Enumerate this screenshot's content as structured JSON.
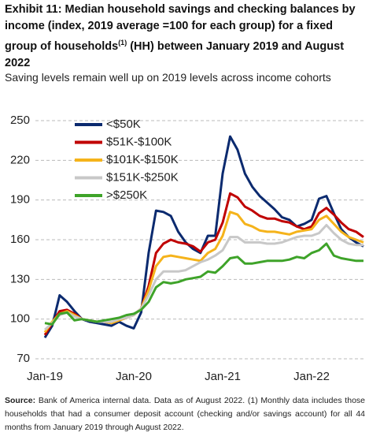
{
  "chart_data": {
    "type": "line",
    "title": {
      "before": "Exhibit 11: Median household savings and checking balances by income (index, 2019 average =100 for each group) for a fixed group of households",
      "note": "(1)",
      "after": " (HH) between January 2019 and August 2022"
    },
    "subtitle": "Saving levels remain well up on 2019 levels across income cohorts",
    "source": {
      "label": "Source:",
      "text": "Bank of America internal data. Data as of August 2022. (1) Monthly data includes those households that had a consumer deposit account (checking and/or savings account) for all 44 months from January 2019 through August 2022."
    },
    "categories": [
      "Jan-19",
      null,
      null,
      null,
      null,
      null,
      null,
      null,
      null,
      null,
      null,
      null,
      "Jan-20",
      null,
      null,
      null,
      null,
      null,
      null,
      null,
      null,
      null,
      null,
      null,
      "Jan-21",
      null,
      null,
      null,
      null,
      null,
      null,
      null,
      null,
      null,
      null,
      null,
      "Jan-22",
      null,
      null,
      null,
      null,
      null,
      null,
      null
    ],
    "series": [
      {
        "name": "<$50K",
        "color": "#0b2a6f",
        "values": [
          86,
          95,
          118,
          113,
          106,
          100,
          98,
          97,
          96,
          95,
          98,
          95,
          93,
          105,
          150,
          182,
          181,
          178,
          166,
          158,
          153,
          150,
          163,
          163,
          210,
          238,
          228,
          210,
          200,
          193,
          188,
          183,
          177,
          175,
          170,
          172,
          175,
          191,
          193,
          180,
          168,
          162,
          158,
          155
        ]
      },
      {
        "name": "$51K-$100K",
        "color": "#c00000",
        "values": [
          88,
          97,
          106,
          107,
          104,
          100,
          99,
          98,
          98,
          97,
          99,
          101,
          103,
          108,
          125,
          150,
          157,
          160,
          158,
          157,
          155,
          151,
          158,
          160,
          173,
          195,
          192,
          185,
          182,
          178,
          176,
          176,
          174,
          173,
          170,
          168,
          170,
          180,
          184,
          179,
          173,
          168,
          166,
          162
        ]
      },
      {
        "name": "$101K-$150K",
        "color": "#f5b31b",
        "values": [
          90,
          98,
          104,
          106,
          103,
          100,
          99,
          98,
          98,
          97,
          99,
          101,
          103,
          108,
          122,
          140,
          147,
          148,
          147,
          146,
          145,
          144,
          150,
          153,
          163,
          181,
          179,
          172,
          170,
          167,
          166,
          166,
          165,
          164,
          166,
          167,
          168,
          175,
          178,
          172,
          166,
          162,
          160,
          158
        ]
      },
      {
        "name": "$151K-$250K",
        "color": "#c8c8c8",
        "values": [
          92,
          97,
          103,
          105,
          102,
          100,
          99,
          98,
          98,
          98,
          100,
          101,
          103,
          108,
          118,
          130,
          136,
          136,
          136,
          137,
          140,
          143,
          145,
          148,
          152,
          162,
          162,
          158,
          158,
          158,
          157,
          157,
          158,
          160,
          162,
          163,
          163,
          165,
          171,
          165,
          160,
          157,
          156,
          156
        ]
      },
      {
        "name": ">$250K",
        "color": "#3ea329",
        "values": [
          97,
          96,
          104,
          105,
          99,
          100,
          99,
          98,
          99,
          100,
          101,
          103,
          104,
          107,
          113,
          124,
          128,
          127,
          128,
          130,
          131,
          132,
          136,
          135,
          140,
          146,
          147,
          142,
          142,
          143,
          144,
          144,
          144,
          145,
          147,
          146,
          150,
          152,
          157,
          148,
          146,
          145,
          144,
          144
        ]
      }
    ],
    "ylim": [
      70,
      250
    ],
    "yticks": [
      70,
      100,
      130,
      160,
      190,
      220,
      250
    ],
    "grid": true,
    "legend": "upper left"
  }
}
